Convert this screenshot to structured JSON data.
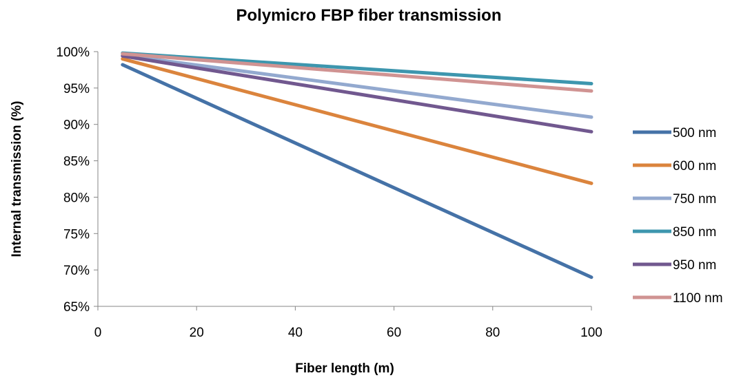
{
  "chart_data": {
    "type": "line",
    "title": "Polymicro FBP fiber transmission",
    "xlabel": "Fiber length (m)",
    "ylabel": "Internal transmission (%)",
    "xlim": [
      0,
      100
    ],
    "ylim": [
      65,
      100
    ],
    "x_ticks": [
      "0",
      "20",
      "40",
      "60",
      "80",
      "100"
    ],
    "y_ticks": [
      "65%",
      "70%",
      "75%",
      "80%",
      "85%",
      "90%",
      "95%",
      "100%"
    ],
    "grid": false,
    "legend_position": "right",
    "x": [
      5,
      100
    ],
    "series": [
      {
        "name": "500 nm",
        "color": "#4572A7",
        "values": [
          98.2,
          69.0
        ]
      },
      {
        "name": "600 nm",
        "color": "#DB843D",
        "values": [
          99.0,
          81.9
        ]
      },
      {
        "name": "750 nm",
        "color": "#93A9CF",
        "values": [
          99.5,
          91.0
        ]
      },
      {
        "name": "850 nm",
        "color": "#3D96AE",
        "values": [
          99.8,
          95.6
        ]
      },
      {
        "name": "950 nm",
        "color": "#71588F",
        "values": [
          99.4,
          89.0
        ]
      },
      {
        "name": "1100 nm",
        "color": "#D09392",
        "values": [
          99.7,
          94.6
        ]
      }
    ]
  }
}
